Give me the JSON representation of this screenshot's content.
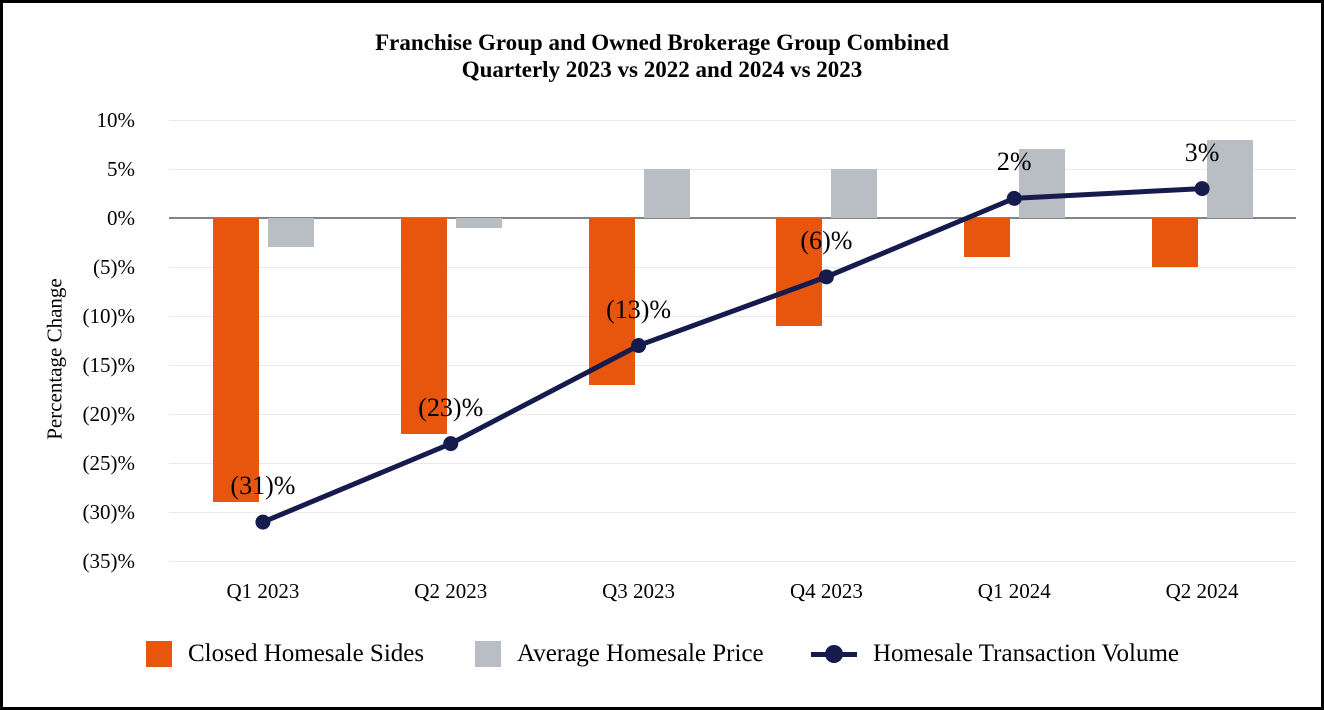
{
  "chart_data": {
    "type": "combo-bar-line",
    "title_line1": "Franchise Group and Owned Brokerage Group Combined",
    "title_line2": "Quarterly 2023 vs 2022 and 2024 vs 2023",
    "ylabel": "Percentage Change",
    "categories": [
      "Q1 2023",
      "Q2 2023",
      "Q3 2023",
      "Q4 2023",
      "Q1 2024",
      "Q2 2024"
    ],
    "bar_series": [
      {
        "name": "Closed Homesale Sides",
        "color": "#E8550D",
        "values": [
          -29,
          -22,
          -17,
          -11,
          -4,
          -5
        ]
      },
      {
        "name": "Average Homesale Price",
        "color": "#B8BEC4",
        "values": [
          -3,
          -1,
          5,
          5,
          7,
          8
        ]
      }
    ],
    "line_series": {
      "name": "Homesale Transaction Volume",
      "color": "#161B4E",
      "values": [
        -31,
        -23,
        -13,
        -6,
        2,
        3
      ],
      "labels": [
        "(31)%",
        "(23)%",
        "(13)%",
        "(6)%",
        "2%",
        "3%"
      ]
    },
    "y_ticks": [
      {
        "v": 10,
        "label": "10%"
      },
      {
        "v": 5,
        "label": "5%"
      },
      {
        "v": 0,
        "label": "0%"
      },
      {
        "v": -5,
        "label": "(5)%"
      },
      {
        "v": -10,
        "label": "(10)%"
      },
      {
        "v": -15,
        "label": "(15)%"
      },
      {
        "v": -20,
        "label": "(20)%"
      },
      {
        "v": -25,
        "label": "(25)%"
      },
      {
        "v": -30,
        "label": "(30)%"
      },
      {
        "v": -35,
        "label": "(35)%"
      }
    ],
    "ylim": [
      -35,
      10
    ],
    "grid": true,
    "zero_line_color": "#848484",
    "gridline_color": "#E9E9E9",
    "legend_position": "bottom"
  }
}
